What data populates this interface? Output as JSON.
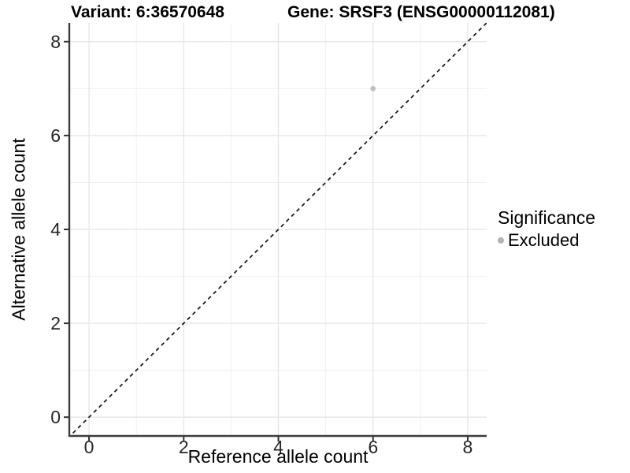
{
  "header": {
    "variant_title": "Variant: 6:36570648",
    "gene_title": "Gene: SRSF3 (ENSG00000112081)"
  },
  "legend": {
    "title": "Significance",
    "items": [
      {
        "label": "Excluded",
        "color": "#b3b3b3"
      }
    ]
  },
  "chart_data": {
    "type": "scatter",
    "title": "Variant: 6:36570648   Gene: SRSF3 (ENSG00000112081)",
    "xlabel": "Reference allele count",
    "ylabel": "Alternative allele count",
    "xlim": [
      -0.4,
      8.4
    ],
    "ylim": [
      -0.4,
      8.4
    ],
    "x_ticks": [
      0,
      2,
      4,
      6,
      8
    ],
    "y_ticks": [
      0,
      2,
      4,
      6,
      8
    ],
    "x_minor": [
      1,
      3,
      5,
      7
    ],
    "y_minor": [
      1,
      3,
      5,
      7
    ],
    "grid": true,
    "legend_title": "Significance",
    "legend_position": "right",
    "series": [
      {
        "name": "Excluded",
        "color": "#bdbdbd",
        "points": [
          {
            "x": 6,
            "y": 7
          }
        ]
      }
    ],
    "reference_line": {
      "kind": "abline",
      "slope": 1,
      "intercept": 0,
      "style": "dashed",
      "color": "#111111"
    },
    "colors": {
      "major_grid": "#e5e5e5",
      "minor_grid": "#f0f0f0",
      "axis_line": "#3c3c3c",
      "tick_mark": "#333333",
      "tick_label": "#262626"
    }
  }
}
